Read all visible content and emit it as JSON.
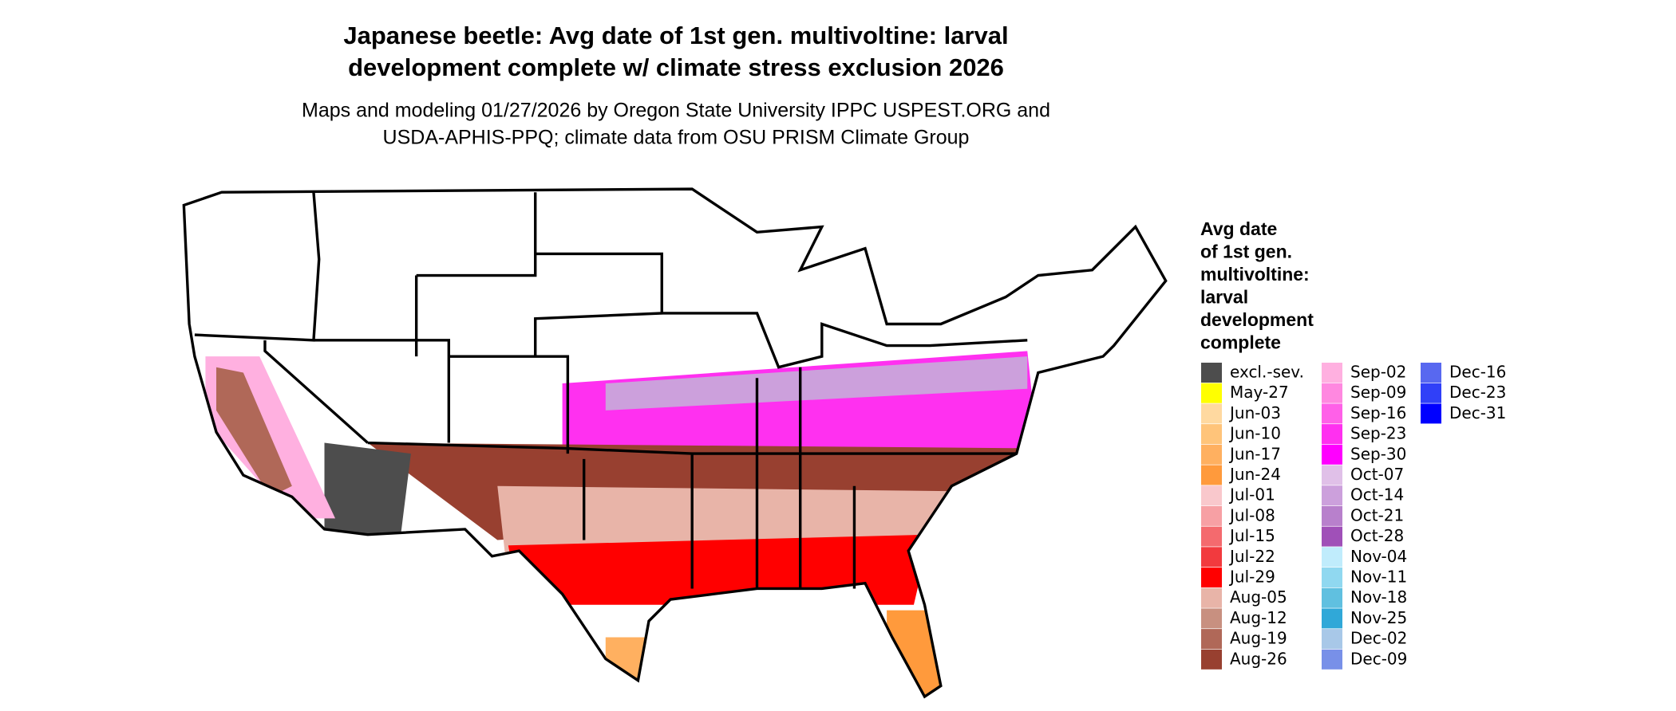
{
  "header": {
    "title": [
      "Japanese beetle: Avg date of 1st gen. multivoltine: larval",
      "development complete w/ climate stress exclusion 2026"
    ],
    "subtitle": [
      "Maps and modeling 01/27/2026 by Oregon State University IPPC USPEST.ORG and",
      "USDA-APHIS-PPQ; climate data from OSU PRISM Climate Group"
    ]
  },
  "legend": {
    "title": [
      "Avg date",
      "of 1st gen.",
      "multivoltine:",
      "larval",
      "development",
      "complete"
    ],
    "items": [
      {
        "label": "excl.-sev.",
        "color": "#4d4d4d"
      },
      {
        "label": "May-27",
        "color": "#ffff00"
      },
      {
        "label": "Jun-03",
        "color": "#ffd9a0"
      },
      {
        "label": "Jun-10",
        "color": "#ffc47a"
      },
      {
        "label": "Jun-17",
        "color": "#ffb060"
      },
      {
        "label": "Jun-24",
        "color": "#ff9a3c"
      },
      {
        "label": "Jul-01",
        "color": "#f9c8cc"
      },
      {
        "label": "Jul-08",
        "color": "#f7a0a4"
      },
      {
        "label": "Jul-15",
        "color": "#f46a6e"
      },
      {
        "label": "Jul-22",
        "color": "#f23a3e"
      },
      {
        "label": "Jul-29",
        "color": "#ff0000"
      },
      {
        "label": "Aug-05",
        "color": "#e8b4a8"
      },
      {
        "label": "Aug-12",
        "color": "#c89080"
      },
      {
        "label": "Aug-19",
        "color": "#b06858"
      },
      {
        "label": "Aug-26",
        "color": "#984030"
      },
      {
        "label": "Sep-02",
        "color": "#ffb0e0"
      },
      {
        "label": "Sep-09",
        "color": "#ff88e0"
      },
      {
        "label": "Sep-16",
        "color": "#ff60e8"
      },
      {
        "label": "Sep-23",
        "color": "#ff30f0"
      },
      {
        "label": "Sep-30",
        "color": "#ff00ff"
      },
      {
        "label": "Oct-07",
        "color": "#e0c0e8"
      },
      {
        "label": "Oct-14",
        "color": "#cca0dc"
      },
      {
        "label": "Oct-21",
        "color": "#b880cc"
      },
      {
        "label": "Oct-28",
        "color": "#a050b8"
      },
      {
        "label": "Nov-04",
        "color": "#c0ecfc"
      },
      {
        "label": "Nov-11",
        "color": "#90d8f0"
      },
      {
        "label": "Nov-18",
        "color": "#60c0e0"
      },
      {
        "label": "Nov-25",
        "color": "#30a8d8"
      },
      {
        "label": "Dec-02",
        "color": "#a8c8e8"
      },
      {
        "label": "Dec-09",
        "color": "#7890e8"
      },
      {
        "label": "Dec-16",
        "color": "#5868f0"
      },
      {
        "label": "Dec-23",
        "color": "#3040f8"
      },
      {
        "label": "Dec-31",
        "color": "#0000ff"
      }
    ]
  }
}
